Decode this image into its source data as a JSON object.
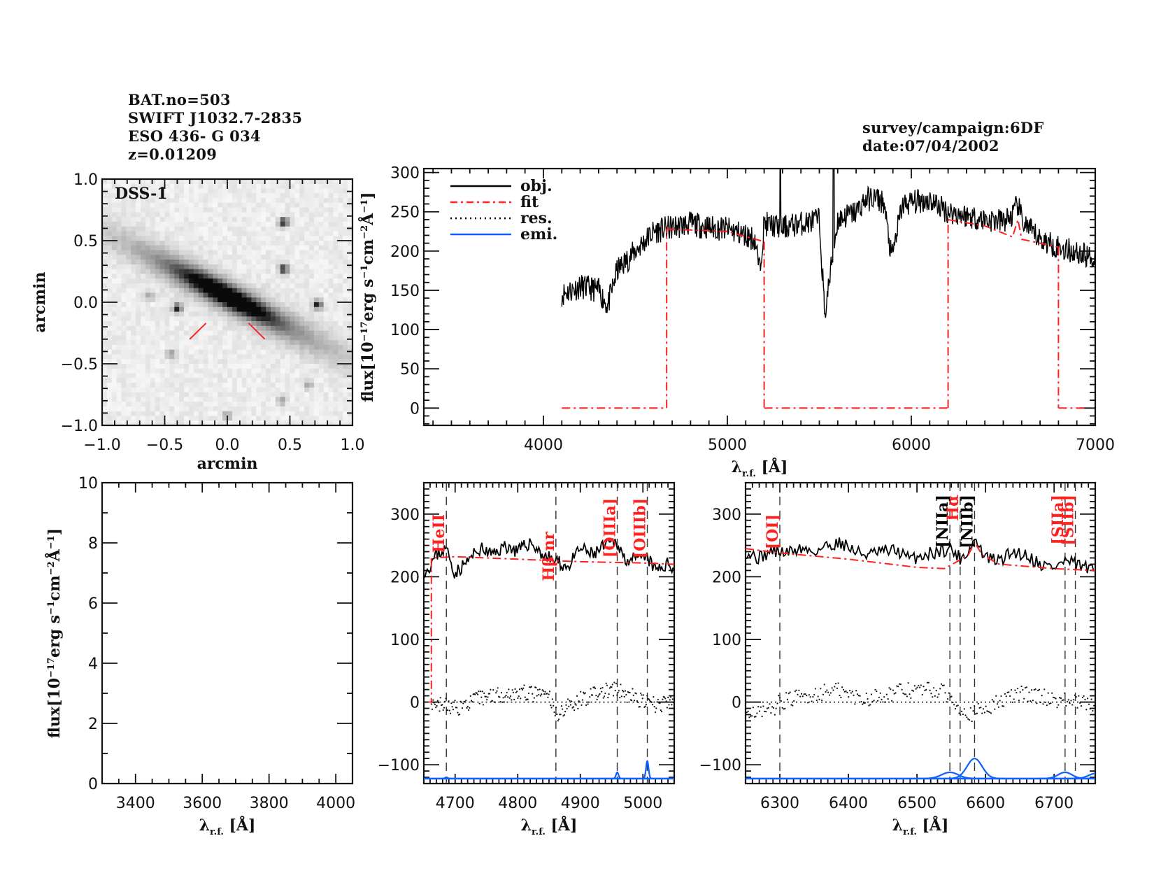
{
  "header": {
    "left": [
      "BAT.no=503",
      "SWIFT J1032.7-2835",
      "ESO 436- G 034",
      "z=0.01209"
    ],
    "right": [
      "survey/campaign:6DF",
      "date:07/04/2002"
    ]
  },
  "colors": {
    "obj": "#000000",
    "fit": "#ff2020",
    "res": "#000000",
    "emi": "#1060ff",
    "line_marker": "#333333"
  },
  "chart_data": [
    {
      "id": "image",
      "type": "heatmap",
      "title": "DSS-1",
      "xlabel": "arcmin",
      "ylabel": "arcmin",
      "xlim": [
        -1.0,
        1.0
      ],
      "ylim": [
        -1.0,
        1.0
      ],
      "xticks": [
        "-1.0",
        "-0.5",
        "0.0",
        "0.5",
        "1.0"
      ],
      "yticks": [
        "-1.0",
        "-0.5",
        "0.0",
        "0.5",
        "1.0"
      ],
      "galaxy": {
        "center": [
          0.0,
          0.05
        ],
        "position_angle_deg": -28,
        "major_arcmin": 1.3,
        "minor_arcmin": 0.12
      },
      "stars": [
        [
          0.45,
          0.65
        ],
        [
          0.45,
          0.27
        ],
        [
          0.72,
          -0.02
        ],
        [
          -0.4,
          -0.05
        ],
        [
          0.43,
          -0.8
        ],
        [
          -0.45,
          -0.42
        ],
        [
          0.0,
          -0.92
        ],
        [
          0.65,
          -0.67
        ],
        [
          -0.62,
          0.05
        ]
      ],
      "slit_markers": [
        [
          [
            -0.17,
            -0.17
          ],
          [
            -0.3,
            -0.3
          ]
        ],
        [
          [
            0.17,
            -0.17
          ],
          [
            0.3,
            -0.3
          ]
        ]
      ]
    },
    {
      "id": "full-spectrum",
      "type": "line",
      "xlabel": "λ r.f. [Å]",
      "ylabel": "flux[10^-17 erg s^-1 cm^-2 Å^-1]",
      "xlim": [
        3350,
        7000
      ],
      "ylim": [
        -22,
        305
      ],
      "xticks": [
        "4000",
        "5000",
        "6000",
        "7000"
      ],
      "yticks": [
        "0",
        "50",
        "100",
        "150",
        "200",
        "250",
        "300"
      ],
      "legend": {
        "position": "top-left",
        "entries": [
          {
            "label": "obj.",
            "style": "solid",
            "color": "#000000"
          },
          {
            "label": "fit",
            "style": "dashdot",
            "color": "#ff2020"
          },
          {
            "label": "res.",
            "style": "dotted",
            "color": "#000000"
          },
          {
            "label": "emi.",
            "style": "solid",
            "color": "#1060ff"
          }
        ]
      },
      "series": [
        {
          "name": "obj.",
          "x": [
            4100,
            4200,
            4300,
            4350,
            4400,
            4500,
            4600,
            4700,
            4800,
            4900,
            5000,
            5100,
            5150,
            5175,
            5200,
            5300,
            5400,
            5500,
            5530,
            5600,
            5700,
            5750,
            5800,
            5850,
            5893,
            5950,
            6000,
            6100,
            6200,
            6300,
            6400,
            6500,
            6550,
            6580,
            6600,
            6650,
            6700,
            6800,
            6900,
            7000
          ],
          "y": [
            145,
            155,
            150,
            130,
            175,
            200,
            225,
            230,
            235,
            230,
            228,
            220,
            215,
            175,
            235,
            230,
            235,
            240,
            120,
            240,
            250,
            265,
            268,
            262,
            190,
            258,
            262,
            265,
            250,
            245,
            240,
            238,
            245,
            260,
            240,
            225,
            215,
            205,
            198,
            190
          ]
        },
        {
          "name": "fit",
          "segments": [
            {
              "x": [
                4100,
                4670
              ],
              "y": [
                0,
                0
              ]
            },
            {
              "x": [
                4670,
                4670
              ],
              "y": [
                0,
                228
              ]
            },
            {
              "x": [
                4670,
                5000,
                5200
              ],
              "y": [
                228,
                225,
                212
              ]
            },
            {
              "x": [
                5200,
                5200
              ],
              "y": [
                212,
                0
              ]
            },
            {
              "x": [
                5200,
                6200
              ],
              "y": [
                0,
                0
              ]
            },
            {
              "x": [
                6200,
                6200
              ],
              "y": [
                0,
                240
              ]
            },
            {
              "x": [
                6200,
                6400,
                6550,
                6580,
                6600,
                6700,
                6800
              ],
              "y": [
                240,
                232,
                218,
                240,
                215,
                210,
                205
              ]
            },
            {
              "x": [
                6800,
                6800
              ],
              "y": [
                205,
                0
              ]
            },
            {
              "x": [
                6800,
                6950
              ],
              "y": [
                0,
                0
              ]
            }
          ]
        }
      ]
    },
    {
      "id": "blue-empty",
      "type": "line",
      "xlabel": "λ r.f. [Å]",
      "ylabel": "flux[10^-17 erg s^-1 cm^-2 Å^-1]",
      "xlim": [
        3300,
        4050
      ],
      "ylim": [
        0,
        10
      ],
      "xticks": [
        "3400",
        "3600",
        "3800",
        "4000"
      ],
      "yticks": [
        "0",
        "2",
        "4",
        "6",
        "8",
        "10"
      ],
      "series": []
    },
    {
      "id": "hbeta-region",
      "type": "line",
      "xlabel": "λ r.f. [Å]",
      "xlim": [
        4650,
        5050
      ],
      "ylim": [
        -130,
        350
      ],
      "xticks": [
        "4700",
        "4800",
        "4900",
        "5000"
      ],
      "yticks": [
        "-100",
        "0",
        "100",
        "200",
        "300"
      ],
      "line_markers": [
        {
          "label": "HeII",
          "x": 4686,
          "color": "#ff2020"
        },
        {
          "label": "Hβ nr",
          "x": 4861,
          "color": "#ff2020"
        },
        {
          "label": "[OIIIa]",
          "x": 4959,
          "color": "#ff2020"
        },
        {
          "label": "[OIIIb]",
          "x": 5007,
          "color": "#ff2020"
        }
      ],
      "series": [
        {
          "name": "obj.",
          "x": [
            4655,
            4670,
            4686,
            4700,
            4720,
            4740,
            4760,
            4780,
            4800,
            4820,
            4840,
            4860,
            4880,
            4900,
            4920,
            4940,
            4959,
            4970,
            4990,
            5007,
            5020,
            5040,
            5050
          ],
          "y": [
            210,
            235,
            245,
            205,
            225,
            245,
            235,
            250,
            240,
            255,
            235,
            225,
            215,
            245,
            235,
            250,
            255,
            230,
            225,
            230,
            210,
            220,
            215
          ]
        },
        {
          "name": "fit",
          "x": [
            4655,
            4662,
            4662,
            4700,
            4800,
            4900,
            5000,
            5050
          ],
          "y": [
            0,
            0,
            230,
            232,
            228,
            224,
            222,
            220
          ]
        },
        {
          "name": "res.",
          "x": [
            4662,
            4700,
            4750,
            4800,
            4850,
            4860,
            4900,
            4950,
            4980,
            5000,
            5020,
            5050
          ],
          "y": [
            0,
            -10,
            10,
            15,
            10,
            -20,
            5,
            20,
            10,
            0,
            -5,
            0
          ]
        },
        {
          "name": "emi.",
          "baseline": -122,
          "gaussians": [
            {
              "center": 4686,
              "amp": 2,
              "sigma": 2
            },
            {
              "center": 4959,
              "amp": 10,
              "sigma": 2
            },
            {
              "center": 5007,
              "amp": 28,
              "sigma": 2
            }
          ]
        }
      ]
    },
    {
      "id": "halpha-region",
      "type": "line",
      "xlabel": "λ r.f. [Å]",
      "xlim": [
        6250,
        6760
      ],
      "ylim": [
        -130,
        350
      ],
      "xticks": [
        "6300",
        "6400",
        "6500",
        "6600",
        "6700"
      ],
      "yticks": [
        "-100",
        "0",
        "100",
        "200",
        "300"
      ],
      "line_markers": [
        {
          "label": "[OI]",
          "x": 6300,
          "color": "#ff2020"
        },
        {
          "label": "[NIIa]",
          "x": 6548,
          "color": "#000000"
        },
        {
          "label": "Hα",
          "x": 6563,
          "color": "#ff2020"
        },
        {
          "label": "[NIIb]",
          "x": 6584,
          "color": "#000000"
        },
        {
          "label": "[SIIa]",
          "x": 6716,
          "color": "#ff2020"
        },
        {
          "label": "[SIIb]",
          "x": 6731,
          "color": "#ff2020"
        }
      ],
      "series": [
        {
          "name": "obj.",
          "x": [
            6250,
            6270,
            6290,
            6310,
            6330,
            6350,
            6370,
            6390,
            6410,
            6430,
            6450,
            6470,
            6490,
            6510,
            6530,
            6548,
            6563,
            6575,
            6584,
            6600,
            6620,
            6640,
            6660,
            6680,
            6700,
            6716,
            6730,
            6745,
            6760
          ],
          "y": [
            240,
            230,
            242,
            238,
            245,
            240,
            250,
            255,
            240,
            235,
            240,
            242,
            228,
            235,
            240,
            245,
            230,
            240,
            260,
            230,
            225,
            240,
            235,
            220,
            215,
            225,
            220,
            215,
            205
          ]
        },
        {
          "name": "fit",
          "x": [
            6250,
            6300,
            6400,
            6500,
            6540,
            6560,
            6575,
            6584,
            6595,
            6620,
            6700,
            6760
          ],
          "y": [
            245,
            238,
            228,
            215,
            213,
            225,
            235,
            255,
            235,
            220,
            213,
            210
          ]
        },
        {
          "name": "res.",
          "x": [
            6250,
            6280,
            6300,
            6330,
            6380,
            6420,
            6480,
            6520,
            6540,
            6560,
            6580,
            6600,
            6650,
            6700,
            6730,
            6760
          ],
          "y": [
            -10,
            -20,
            0,
            8,
            20,
            5,
            18,
            20,
            15,
            -5,
            -20,
            -10,
            15,
            5,
            0,
            -5
          ]
        },
        {
          "name": "emi.",
          "baseline": -122,
          "gaussians": [
            {
              "center": 6548,
              "amp": 10,
              "sigma": 12
            },
            {
              "center": 6584,
              "amp": 32,
              "sigma": 11
            },
            {
              "center": 6716,
              "amp": 10,
              "sigma": 10
            },
            {
              "center": 6760,
              "amp": 8,
              "sigma": 10
            }
          ]
        }
      ]
    }
  ]
}
